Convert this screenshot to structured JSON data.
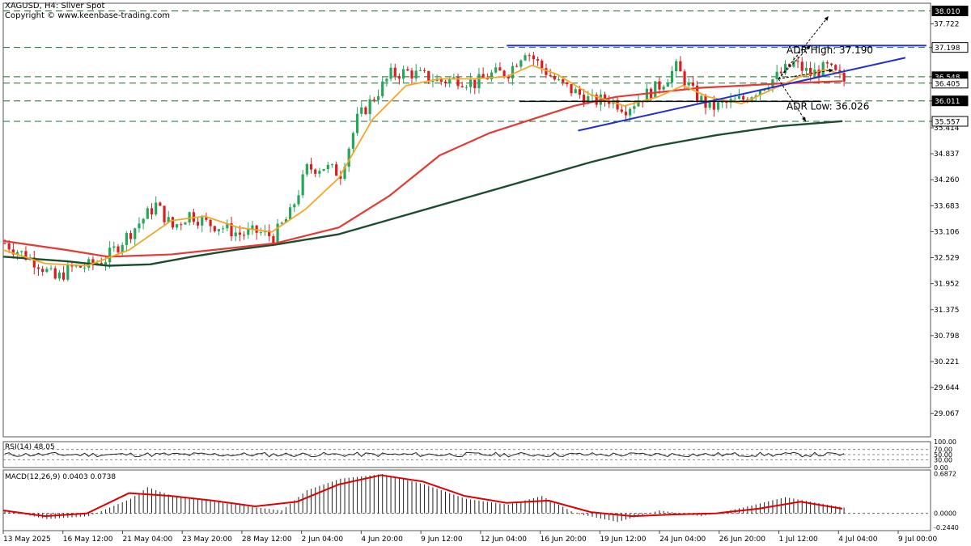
{
  "header": {
    "symbol_line": "XAGUSD, H4:  Silver Spot",
    "copyright": "Copyright © www.keenbase-trading.com"
  },
  "colors": {
    "background": "#ffffff",
    "bull_candle": "#26a65b",
    "bear_candle": "#d81e1e",
    "ma_fast": "#f5a623",
    "ma_mid": "#e53935",
    "ma_slow": "#1b4d2e",
    "trendline": "#1f2fd1",
    "level_line": "#1d6b2f",
    "macd_hist": "#222222",
    "macd_signal": "#e00000",
    "rsi_line": "#222222"
  },
  "annotations": {
    "adr_high": "ADR High: 37.190",
    "adr_low": "ADR Low: 36.026"
  },
  "rsi_panel": {
    "label": "RSI(14) 48.05",
    "axis_labels": [
      "100.00",
      "70.00",
      "50.00",
      "30.00",
      "0.00"
    ]
  },
  "macd_panel": {
    "label": "MACD(12,26,9) 0.0403 0.0738",
    "axis_labels": [
      "0.6872",
      "0.0000",
      "-0.2440"
    ]
  },
  "chart_data": {
    "type": "candlestick",
    "symbol": "XAGUSD",
    "timeframe": "H4",
    "y_ticks": [
      "37.722",
      "37.198",
      "36.548",
      "36.405",
      "36.011",
      "35.557",
      "35.414",
      "34.837",
      "34.260",
      "33.683",
      "33.106",
      "32.529",
      "31.952",
      "31.375",
      "30.798",
      "30.221",
      "29.644",
      "29.067"
    ],
    "price_tags": [
      "38.010",
      "37.198",
      "36.548",
      "36.405",
      "36.011",
      "35.557"
    ],
    "ylim": [
      28.55,
      38.18
    ],
    "x_ticks": [
      "13 May 2025",
      "16 May 12:00",
      "21 May 04:00",
      "23 May 20:00",
      "28 May 12:00",
      "2 Jun 04:00",
      "4 Jun 20:00",
      "9 Jun 12:00",
      "12 Jun 04:00",
      "16 Jun 20:00",
      "19 Jun 12:00",
      "24 Jun 04:00",
      "26 Jun 20:00",
      "1 Jul 12:00",
      "4 Jul 04:00",
      "9 Jul 00:00"
    ],
    "horizontal_levels": [
      38.01,
      37.198,
      36.548,
      36.405,
      36.011,
      35.557
    ],
    "close_path": [
      [
        0,
        32.85
      ],
      [
        8,
        32.4
      ],
      [
        12,
        32.05
      ],
      [
        16,
        32.3
      ],
      [
        20,
        32.35
      ],
      [
        24,
        32.5
      ],
      [
        28,
        32.9
      ],
      [
        32,
        33.3
      ],
      [
        36,
        33.7
      ],
      [
        40,
        33.2
      ],
      [
        44,
        33.5
      ],
      [
        48,
        33.3
      ],
      [
        52,
        33.2
      ],
      [
        56,
        33.05
      ],
      [
        60,
        33.1
      ],
      [
        64,
        33.0
      ],
      [
        68,
        33.5
      ],
      [
        72,
        34.5
      ],
      [
        76,
        34.55
      ],
      [
        80,
        34.4
      ],
      [
        84,
        35.6
      ],
      [
        88,
        36.1
      ],
      [
        92,
        36.6
      ],
      [
        96,
        36.65
      ],
      [
        100,
        36.55
      ],
      [
        104,
        36.45
      ],
      [
        108,
        36.5
      ],
      [
        112,
        36.4
      ],
      [
        116,
        36.6
      ],
      [
        120,
        36.65
      ],
      [
        124,
        37.15
      ],
      [
        128,
        36.75
      ],
      [
        132,
        36.4
      ],
      [
        136,
        36.2
      ],
      [
        140,
        36.0
      ],
      [
        144,
        36.05
      ],
      [
        148,
        35.85
      ],
      [
        152,
        36.1
      ],
      [
        156,
        36.35
      ],
      [
        160,
        36.75
      ],
      [
        164,
        36.2
      ],
      [
        168,
        35.85
      ],
      [
        172,
        35.95
      ],
      [
        176,
        36.05
      ],
      [
        180,
        36.3
      ],
      [
        184,
        36.55
      ],
      [
        188,
        36.85
      ],
      [
        192,
        36.6
      ],
      [
        196,
        36.75
      ],
      [
        200,
        36.45
      ]
    ],
    "ma_fast_path": [
      [
        0,
        32.7
      ],
      [
        10,
        32.4
      ],
      [
        20,
        32.35
      ],
      [
        30,
        32.7
      ],
      [
        40,
        33.35
      ],
      [
        48,
        33.45
      ],
      [
        56,
        33.2
      ],
      [
        64,
        33.1
      ],
      [
        72,
        33.6
      ],
      [
        80,
        34.3
      ],
      [
        88,
        35.6
      ],
      [
        96,
        36.35
      ],
      [
        104,
        36.5
      ],
      [
        112,
        36.5
      ],
      [
        120,
        36.55
      ],
      [
        126,
        36.8
      ],
      [
        132,
        36.6
      ],
      [
        140,
        36.15
      ],
      [
        148,
        35.9
      ],
      [
        156,
        36.1
      ],
      [
        162,
        36.35
      ],
      [
        168,
        36.1
      ],
      [
        176,
        35.95
      ],
      [
        184,
        36.3
      ],
      [
        190,
        36.55
      ],
      [
        196,
        36.7
      ],
      [
        200,
        36.6
      ]
    ],
    "ma_mid_path": [
      [
        0,
        32.9
      ],
      [
        15,
        32.7
      ],
      [
        25,
        32.55
      ],
      [
        40,
        32.6
      ],
      [
        55,
        32.75
      ],
      [
        65,
        32.85
      ],
      [
        80,
        33.2
      ],
      [
        92,
        33.9
      ],
      [
        104,
        34.8
      ],
      [
        116,
        35.3
      ],
      [
        126,
        35.6
      ],
      [
        136,
        35.9
      ],
      [
        146,
        36.1
      ],
      [
        156,
        36.2
      ],
      [
        166,
        36.3
      ],
      [
        176,
        36.35
      ],
      [
        186,
        36.4
      ],
      [
        200,
        36.45
      ]
    ],
    "ma_slow_path": [
      [
        0,
        32.55
      ],
      [
        15,
        32.45
      ],
      [
        25,
        32.35
      ],
      [
        35,
        32.38
      ],
      [
        45,
        32.55
      ],
      [
        55,
        32.7
      ],
      [
        65,
        32.82
      ],
      [
        80,
        33.05
      ],
      [
        95,
        33.45
      ],
      [
        110,
        33.85
      ],
      [
        125,
        34.25
      ],
      [
        140,
        34.65
      ],
      [
        155,
        35.0
      ],
      [
        170,
        35.25
      ],
      [
        185,
        35.45
      ],
      [
        200,
        35.56
      ]
    ],
    "trendline_upper": [
      [
        120,
        37.24
      ],
      [
        220,
        37.24
      ]
    ],
    "trendline_lower": [
      [
        137,
        35.35
      ],
      [
        215,
        36.97
      ]
    ],
    "level_box": [
      [
        123,
        36.0
      ],
      [
        195,
        36.0
      ]
    ],
    "rsi_level": 48.05,
    "macd_main": 0.0403,
    "macd_signal": 0.0738,
    "macd_hist_path": [
      [
        0,
        0.05
      ],
      [
        10,
        -0.1
      ],
      [
        20,
        -0.05
      ],
      [
        30,
        0.25
      ],
      [
        34,
        0.45
      ],
      [
        40,
        0.3
      ],
      [
        50,
        0.2
      ],
      [
        60,
        0.1
      ],
      [
        66,
        0.05
      ],
      [
        72,
        0.4
      ],
      [
        80,
        0.6
      ],
      [
        90,
        0.68
      ],
      [
        100,
        0.5
      ],
      [
        110,
        0.25
      ],
      [
        120,
        0.15
      ],
      [
        128,
        0.3
      ],
      [
        136,
        0.0
      ],
      [
        146,
        -0.15
      ],
      [
        156,
        0.05
      ],
      [
        166,
        -0.05
      ],
      [
        176,
        0.1
      ],
      [
        186,
        0.28
      ],
      [
        196,
        0.15
      ],
      [
        200,
        0.1
      ]
    ],
    "macd_signal_path": [
      [
        0,
        0.05
      ],
      [
        10,
        -0.05
      ],
      [
        20,
        0.0
      ],
      [
        30,
        0.35
      ],
      [
        40,
        0.3
      ],
      [
        50,
        0.22
      ],
      [
        60,
        0.12
      ],
      [
        70,
        0.2
      ],
      [
        80,
        0.5
      ],
      [
        90,
        0.66
      ],
      [
        100,
        0.55
      ],
      [
        110,
        0.3
      ],
      [
        120,
        0.18
      ],
      [
        130,
        0.22
      ],
      [
        140,
        0.02
      ],
      [
        150,
        -0.05
      ],
      [
        160,
        -0.02
      ],
      [
        170,
        0.0
      ],
      [
        180,
        0.08
      ],
      [
        190,
        0.2
      ],
      [
        200,
        0.08
      ]
    ]
  }
}
